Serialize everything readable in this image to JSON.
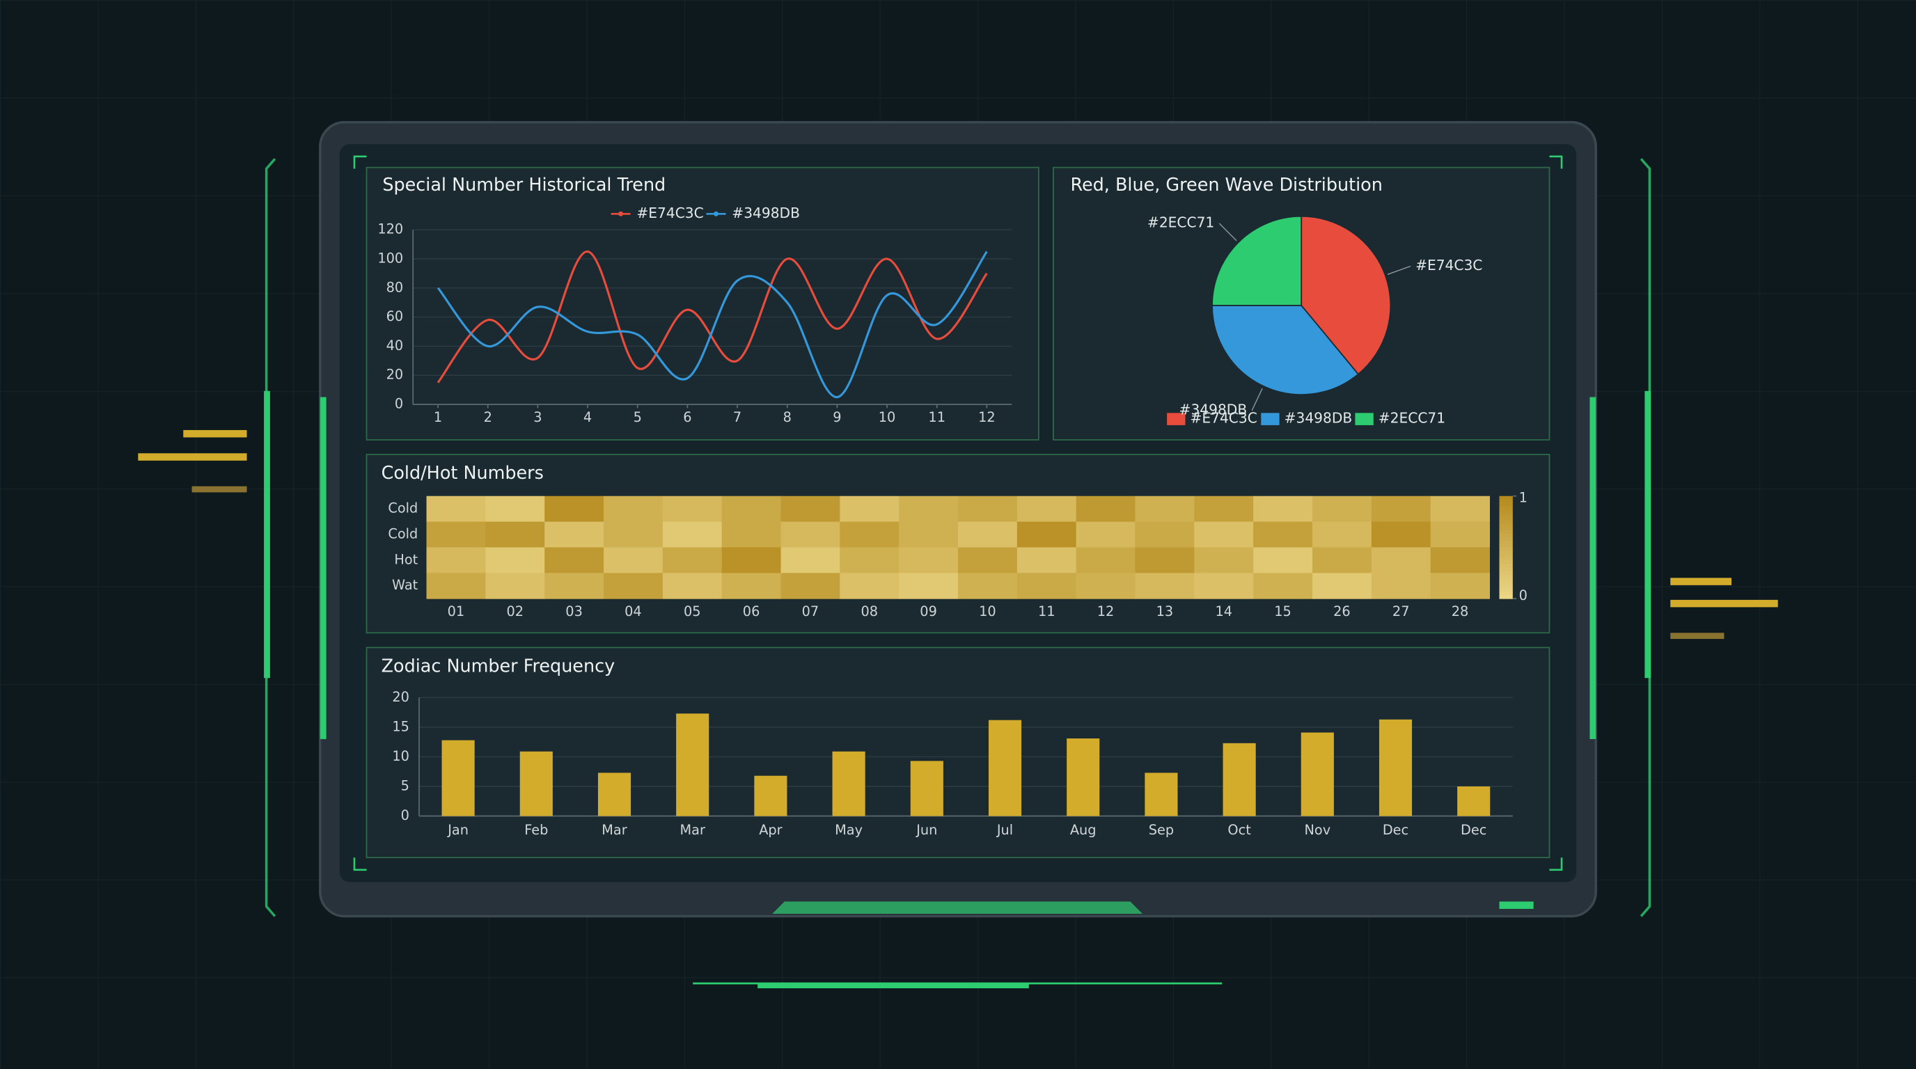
{
  "chart_data": [
    {
      "type": "line",
      "title": "Special Number Historical Trend",
      "x": [
        1,
        2,
        3,
        4,
        5,
        6,
        7,
        8,
        9,
        10,
        11,
        12
      ],
      "xlim": [
        0.5,
        12.5
      ],
      "xticks": [
        1,
        2,
        3,
        4,
        5,
        6,
        7,
        8,
        9,
        10,
        11,
        12
      ],
      "ylim": [
        0,
        120
      ],
      "yticks": [
        0,
        20,
        40,
        60,
        80,
        100,
        120
      ],
      "grid": true,
      "series": [
        {
          "name": "#E74C3C",
          "color": "#e74c3c",
          "values": [
            15,
            58,
            32,
            105,
            25,
            65,
            30,
            100,
            52,
            100,
            45,
            90
          ]
        },
        {
          "name": "#3498DB",
          "color": "#3498db",
          "values": [
            80,
            40,
            67,
            50,
            48,
            18,
            85,
            70,
            5,
            75,
            55,
            105
          ]
        }
      ]
    },
    {
      "type": "pie",
      "title": "Red, Blue, Green Wave Distribution",
      "categories": [
        "#E74C3C",
        "#3498DB",
        "#2ECC71"
      ],
      "values": [
        39,
        36,
        25
      ],
      "colors": [
        "#e74c3c",
        "#3498db",
        "#2ecc71"
      ]
    },
    {
      "type": "heatmap",
      "title": "Cold/Hot Numbers",
      "categories": [
        "01",
        "02",
        "03",
        "04",
        "05",
        "06",
        "07",
        "08",
        "09",
        "10",
        "11",
        "12",
        "13",
        "14",
        "15",
        "26",
        "27",
        "28"
      ],
      "rows": [
        "Cold",
        "Cold",
        "Hot",
        "Wat"
      ],
      "zlim": [
        0,
        1
      ],
      "zticks": [
        0,
        1
      ],
      "colors": [
        "#ecd788",
        "#b48a1c"
      ],
      "z": [
        [
          0.3,
          0.2,
          0.9,
          0.5,
          0.4,
          0.6,
          0.8,
          0.3,
          0.5,
          0.6,
          0.4,
          0.8,
          0.5,
          0.7,
          0.3,
          0.5,
          0.7,
          0.4
        ],
        [
          0.7,
          0.8,
          0.3,
          0.5,
          0.2,
          0.6,
          0.4,
          0.7,
          0.5,
          0.3,
          0.9,
          0.4,
          0.6,
          0.3,
          0.7,
          0.4,
          0.9,
          0.5
        ],
        [
          0.4,
          0.2,
          0.8,
          0.3,
          0.6,
          0.9,
          0.2,
          0.5,
          0.4,
          0.7,
          0.3,
          0.6,
          0.8,
          0.5,
          0.2,
          0.6,
          0.4,
          0.8
        ],
        [
          0.6,
          0.3,
          0.5,
          0.7,
          0.3,
          0.5,
          0.7,
          0.3,
          0.2,
          0.5,
          0.6,
          0.5,
          0.4,
          0.3,
          0.5,
          0.2,
          0.4,
          0.5
        ]
      ]
    },
    {
      "type": "bar",
      "title": "Zodiac Number Frequency",
      "categories": [
        "Jan",
        "Feb",
        "Mar",
        "Mar",
        "Apr",
        "May",
        "Jun",
        "Jul",
        "Aug",
        "Sep",
        "Oct",
        "Nov",
        "Dec",
        "Dec"
      ],
      "values": [
        12.8,
        10.9,
        7.3,
        17.3,
        6.8,
        10.9,
        9.3,
        16.2,
        13.1,
        7.3,
        12.3,
        14.1,
        16.3,
        5.0
      ],
      "color": "#d4ac2c",
      "ylim": [
        0,
        20
      ],
      "yticks": [
        0,
        5,
        10,
        15,
        20
      ],
      "grid": true
    }
  ]
}
